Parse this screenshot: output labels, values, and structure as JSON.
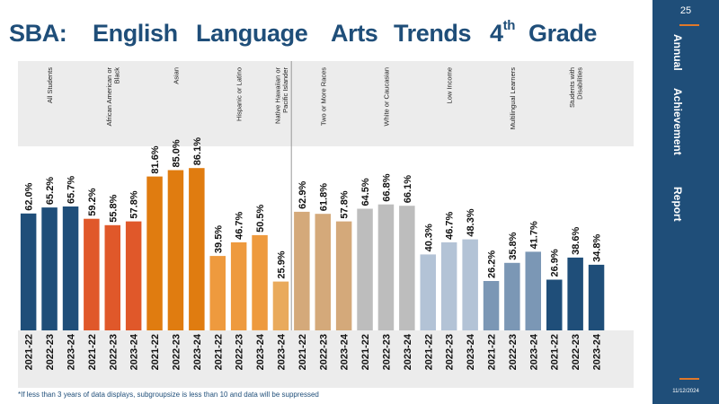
{
  "header": {
    "title_parts": [
      "SBA:",
      "English",
      "Language",
      "Arts",
      "Trends",
      "4",
      "th",
      "Grade"
    ]
  },
  "sidebar": {
    "page_number": "25",
    "words": [
      "Annual",
      "Achievement",
      "Report"
    ],
    "date": "11/12/2024"
  },
  "footnote": "*If less than 3 years of data displays, subgroupsize is less than 10 and data will be suppressed",
  "colors": {
    "brand_blue": "#1f4e79",
    "accent_orange": "#e0782a",
    "panel_gray": "#ececec"
  },
  "chart_data": {
    "type": "bar",
    "ylim": [
      0,
      100
    ],
    "grid": false,
    "value_suffix": "%",
    "groups": [
      {
        "name": "All Students",
        "lines": [
          "All Students"
        ],
        "color": "#1f4e79",
        "categories": [
          "2021-22",
          "2022-23",
          "2023-24"
        ],
        "values": [
          62.0,
          65.2,
          65.7
        ]
      },
      {
        "name": "African American or Black",
        "lines": [
          "African American or",
          "Black"
        ],
        "color": "#e0582a",
        "categories": [
          "2021-22",
          "2022-23",
          "2023-24"
        ],
        "values": [
          59.2,
          55.8,
          57.8
        ]
      },
      {
        "name": "Asian",
        "lines": [
          "Asian"
        ],
        "color": "#e07c10",
        "categories": [
          "2021-22",
          "2022-23",
          "2023-24"
        ],
        "values": [
          81.6,
          85.0,
          86.1
        ]
      },
      {
        "name": "Hispanic or Latino",
        "lines": [
          "Hispanic or Latino"
        ],
        "color": "#ee9a3e",
        "categories": [
          "2021-22",
          "2022-23",
          "2023-24"
        ],
        "values": [
          39.5,
          46.7,
          50.5
        ]
      },
      {
        "name": "Native Hawaiian or Pacific Islander",
        "lines": [
          "Native Hawaiian or",
          "Pacific Islander"
        ],
        "color": "#e9aa5c",
        "categories": [
          "2023-24"
        ],
        "values": [
          25.9
        ]
      },
      {
        "name": "Two or More Races",
        "lines": [
          "Two or More Races"
        ],
        "color": "#d4a97a",
        "categories": [
          "2021-22",
          "2022-23",
          "2023-24"
        ],
        "values": [
          62.9,
          61.8,
          57.8
        ]
      },
      {
        "name": "White or Caucasian",
        "lines": [
          "White or Caucasian"
        ],
        "color": "#bdbdbd",
        "categories": [
          "2021-22",
          "2022-23",
          "2023-24"
        ],
        "values": [
          64.5,
          66.8,
          66.1
        ]
      },
      {
        "name": "Low Income",
        "lines": [
          "Low Income"
        ],
        "color": "#b3c3d6",
        "categories": [
          "2021-22",
          "2022-23",
          "2023-24"
        ],
        "values": [
          40.3,
          46.7,
          48.3
        ]
      },
      {
        "name": "Multilingual Learners",
        "lines": [
          "Multilingual Learners"
        ],
        "color": "#7b97b5",
        "categories": [
          "2021-22",
          "2022-23",
          "2023-24"
        ],
        "values": [
          26.2,
          35.8,
          41.7
        ]
      },
      {
        "name": "Students with Disabilities",
        "lines": [
          "Students with",
          "Disabilities"
        ],
        "color": "#1f4e79",
        "categories": [
          "2021-22",
          "2022-23",
          "2023-24"
        ],
        "values": [
          26.9,
          38.6,
          34.8
        ]
      }
    ]
  }
}
